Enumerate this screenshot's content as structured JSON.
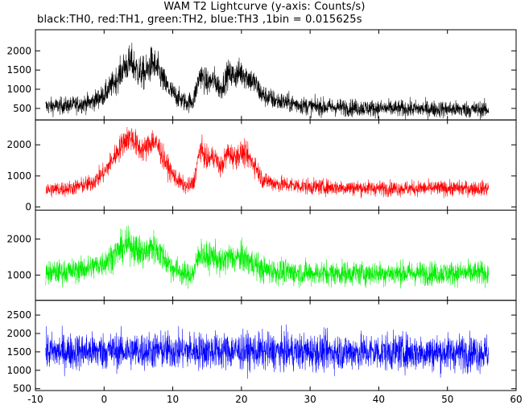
{
  "title": "WAM T2 Lightcurve (y-axis: Counts/s)",
  "subtitle": "black:TH0, red:TH1, green:TH2, blue:TH3 ,1bin = 0.015625s",
  "chart_data": {
    "type": "line",
    "x_ticks": [
      -10,
      0,
      10,
      20,
      30,
      40,
      50,
      60
    ],
    "xlim": [
      -10,
      60
    ],
    "data_x_range": [
      -8.5,
      56
    ],
    "bin_size_s": 0.015625,
    "panels": [
      {
        "series": "TH0",
        "color": "#000000",
        "ylim": [
          200,
          2550
        ],
        "y_ticks": [
          500,
          1000,
          1500,
          2000
        ],
        "x": [
          -8.5,
          -5,
          -2,
          0,
          2,
          3,
          4,
          5,
          6,
          7,
          8,
          9,
          10,
          11,
          12,
          13,
          14,
          15,
          16,
          17,
          18,
          19,
          20,
          21,
          22,
          23,
          25,
          30,
          40,
          50,
          56
        ],
        "mean": [
          550,
          580,
          650,
          850,
          1300,
          1600,
          1700,
          1450,
          1400,
          1700,
          1450,
          1100,
          900,
          750,
          650,
          700,
          1400,
          1150,
          1250,
          1000,
          1400,
          1350,
          1450,
          1300,
          1150,
          850,
          700,
          550,
          500,
          480,
          470
        ],
        "spread": [
          200,
          200,
          220,
          250,
          320,
          380,
          420,
          400,
          380,
          420,
          380,
          300,
          260,
          240,
          220,
          240,
          320,
          300,
          300,
          280,
          320,
          320,
          340,
          320,
          300,
          260,
          230,
          210,
          200,
          200,
          200
        ]
      },
      {
        "series": "TH1",
        "color": "#ff0000",
        "ylim": [
          -100,
          2800
        ],
        "y_ticks": [
          0,
          1000,
          2000
        ],
        "x": [
          -8.5,
          -5,
          -2,
          0,
          2,
          3,
          4,
          5,
          6,
          7,
          8,
          9,
          10,
          11,
          12,
          13,
          14,
          15,
          16,
          17,
          18,
          19,
          20,
          21,
          22,
          23,
          25,
          30,
          40,
          50,
          56
        ],
        "mean": [
          550,
          600,
          750,
          1100,
          1800,
          2150,
          2250,
          1900,
          1850,
          2150,
          1900,
          1400,
          1050,
          800,
          650,
          750,
          1900,
          1500,
          1650,
          1250,
          1750,
          1600,
          1750,
          1600,
          1350,
          900,
          750,
          650,
          600,
          600,
          600
        ],
        "spread": [
          220,
          220,
          250,
          280,
          350,
          380,
          400,
          380,
          360,
          400,
          380,
          320,
          280,
          240,
          220,
          250,
          350,
          320,
          320,
          300,
          350,
          340,
          360,
          340,
          320,
          270,
          240,
          230,
          220,
          220,
          220
        ]
      },
      {
        "series": "TH2",
        "color": "#00ee00",
        "ylim": [
          300,
          2800
        ],
        "y_ticks": [
          1000,
          2000
        ],
        "x": [
          -8.5,
          -5,
          -2,
          0,
          2,
          3,
          4,
          5,
          6,
          7,
          8,
          9,
          10,
          11,
          12,
          13,
          14,
          15,
          16,
          17,
          18,
          19,
          20,
          21,
          22,
          23,
          25,
          30,
          40,
          50,
          56
        ],
        "mean": [
          1050,
          1100,
          1200,
          1350,
          1650,
          1800,
          1850,
          1650,
          1600,
          1800,
          1650,
          1400,
          1200,
          1100,
          1000,
          1050,
          1650,
          1450,
          1550,
          1300,
          1500,
          1450,
          1500,
          1400,
          1300,
          1150,
          1100,
          1050,
          1050,
          1050,
          1050
        ],
        "spread": [
          300,
          300,
          320,
          340,
          380,
          400,
          420,
          400,
          400,
          420,
          400,
          360,
          340,
          320,
          300,
          320,
          380,
          360,
          370,
          350,
          370,
          360,
          370,
          360,
          350,
          330,
          320,
          310,
          300,
          300,
          300
        ]
      },
      {
        "series": "TH3",
        "color": "#0000ff",
        "ylim": [
          450,
          2900
        ],
        "y_ticks": [
          500,
          1000,
          1500,
          2000,
          2500
        ],
        "x": [
          -8.5,
          0,
          10,
          20,
          30,
          40,
          50,
          56
        ],
        "mean": [
          1500,
          1520,
          1540,
          1520,
          1500,
          1500,
          1480,
          1480
        ],
        "spread": [
          450,
          450,
          460,
          450,
          450,
          450,
          450,
          450
        ]
      }
    ]
  }
}
